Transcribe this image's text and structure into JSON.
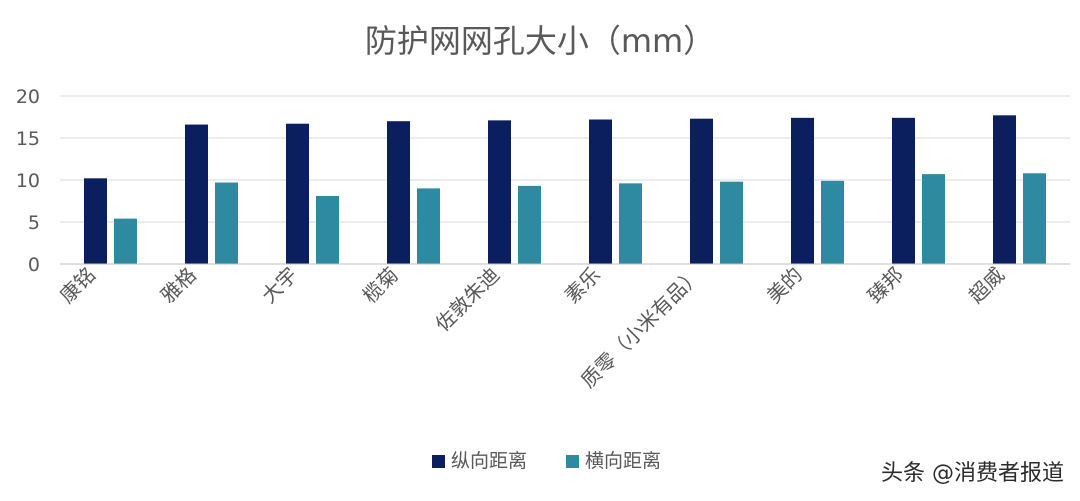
{
  "chart_data": {
    "type": "bar",
    "title": "防护网网孔大小（mm）",
    "categories": [
      "康铭",
      "雅格",
      "大宇",
      "榄菊",
      "佐敦朱迪",
      "素乐",
      "质零（小米有品）",
      "美的",
      "臻邦",
      "超威"
    ],
    "series": [
      {
        "name": "纵向距离",
        "color": "#0b1f5e",
        "values": [
          10.2,
          16.6,
          16.7,
          17.0,
          17.1,
          17.2,
          17.3,
          17.4,
          17.4,
          17.7
        ]
      },
      {
        "name": "横向距离",
        "color": "#2e8aa0",
        "values": [
          5.4,
          9.7,
          8.1,
          9.0,
          9.3,
          9.6,
          9.8,
          9.9,
          10.7,
          10.8
        ]
      }
    ],
    "ylim": [
      0,
      20
    ],
    "yticks": [
      "0",
      "5",
      "10",
      "15",
      "20"
    ],
    "grid": true,
    "legend_position": "bottom"
  },
  "watermark": "头条 @消费者报道"
}
